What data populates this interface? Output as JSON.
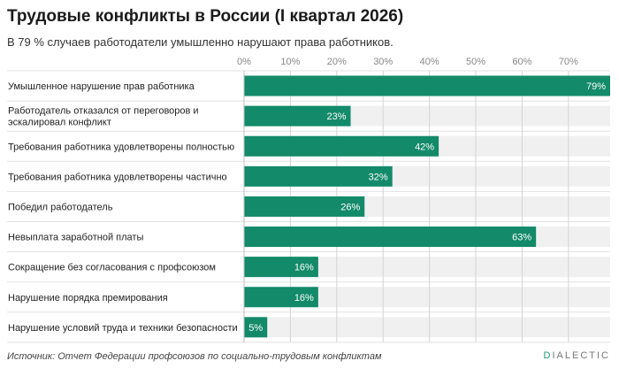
{
  "header": {
    "title": "Трудовые конфликты в России (I квартал 2026)",
    "subtitle": "В 79 % случаев работодатели умышленно нарушают права работников."
  },
  "footer": {
    "source": "Источник: Отчет Федерации профсоюзов по социально-трудовым конфликтам",
    "brand_first": "D",
    "brand_rest": "IALECTIC"
  },
  "colors": {
    "bar": "#138a6a",
    "track": "#f0f0f0",
    "grid": "#d4d4d4",
    "brand_accent": "#1a9e77"
  },
  "chart_data": {
    "type": "bar",
    "orientation": "horizontal",
    "categories": [
      [
        "Умышленное нарушение прав работника"
      ],
      [
        "Работодатель отказался от переговоров и",
        "эскалировал конфликт"
      ],
      [
        "Требования работника удовлетворены полностью"
      ],
      [
        "Требования работника удовлетворены частично"
      ],
      [
        "Победил работодатель"
      ],
      [
        "Невыплата заработной платы"
      ],
      [
        "Сокращение без согласования с профсоюзом"
      ],
      [
        "Нарушение порядка премирования"
      ],
      [
        "Нарушение условий труда и техники безопасности"
      ]
    ],
    "values": [
      79,
      23,
      42,
      32,
      26,
      63,
      16,
      16,
      5
    ],
    "value_labels": [
      "79%",
      "23%",
      "42%",
      "32%",
      "26%",
      "63%",
      "16%",
      "16%",
      "5%"
    ],
    "xticks": [
      0,
      10,
      20,
      30,
      40,
      50,
      60,
      70
    ],
    "xtick_labels": [
      "0%",
      "10%",
      "20%",
      "30%",
      "40%",
      "50%",
      "60%",
      "70%"
    ],
    "xlim": [
      0,
      79
    ],
    "grid": true,
    "xaxis_position": "top"
  }
}
